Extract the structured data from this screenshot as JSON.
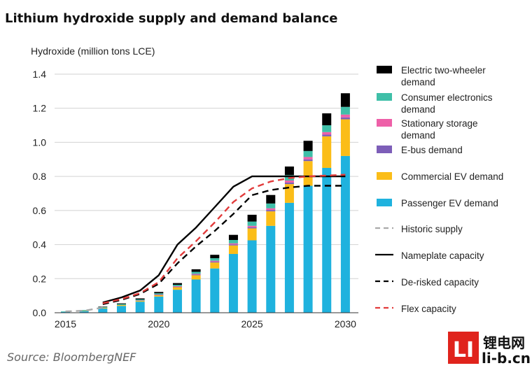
{
  "chart_data": {
    "type": "bar",
    "title": "Lithium hydroxide supply and demand balance",
    "ylabel": "Hydroxide (million tons LCE)",
    "xlabel": "",
    "ylim": [
      0,
      1.4
    ],
    "yticks": [
      "0.0",
      "0.2",
      "0.4",
      "0.6",
      "0.8",
      "1.0",
      "1.2",
      "1.4"
    ],
    "xticks": [
      "2015",
      "2020",
      "2025",
      "2030"
    ],
    "xtick_years": [
      2015,
      2020,
      2025,
      2030
    ],
    "stacked": true,
    "grid": "horizontal",
    "categories": [
      2015,
      2016,
      2017,
      2018,
      2019,
      2020,
      2021,
      2022,
      2023,
      2024,
      2025,
      2026,
      2027,
      2028,
      2029,
      2030
    ],
    "series": [
      {
        "name": "Passenger EV demand",
        "color": "#1fb2de",
        "values": [
          0.005,
          0.01,
          0.025,
          0.04,
          0.065,
          0.095,
          0.135,
          0.195,
          0.26,
          0.345,
          0.425,
          0.51,
          0.645,
          0.745,
          0.85,
          0.92
        ]
      },
      {
        "name": "Commercial EV demand",
        "color": "#fbbd18",
        "values": [
          0.0,
          0.002,
          0.004,
          0.005,
          0.006,
          0.008,
          0.015,
          0.025,
          0.035,
          0.05,
          0.07,
          0.085,
          0.11,
          0.145,
          0.185,
          0.215
        ]
      },
      {
        "name": "E-bus demand",
        "color": "#7d5eb8",
        "values": [
          0.0,
          0.0,
          0.0,
          0.0,
          0.0,
          0.002,
          0.003,
          0.004,
          0.005,
          0.006,
          0.007,
          0.008,
          0.009,
          0.01,
          0.01,
          0.011
        ]
      },
      {
        "name": "Stationary storage demand",
        "color": "#ee60a8",
        "values": [
          0.0,
          0.0,
          0.0,
          0.0,
          0.001,
          0.002,
          0.003,
          0.004,
          0.005,
          0.006,
          0.008,
          0.01,
          0.012,
          0.014,
          0.015,
          0.017
        ]
      },
      {
        "name": "Consumer electronics demand",
        "color": "#3fbfa8",
        "values": [
          0.003,
          0.004,
          0.005,
          0.006,
          0.006,
          0.007,
          0.008,
          0.012,
          0.015,
          0.02,
          0.025,
          0.028,
          0.032,
          0.035,
          0.04,
          0.045
        ]
      },
      {
        "name": "Electric two-wheeler demand",
        "color": "#000000",
        "values": [
          0.0,
          0.0,
          0.002,
          0.004,
          0.006,
          0.008,
          0.01,
          0.015,
          0.02,
          0.03,
          0.04,
          0.05,
          0.05,
          0.06,
          0.07,
          0.08
        ]
      }
    ],
    "lines": [
      {
        "name": "Historic supply",
        "color": "#aaaaaa",
        "dash": "9,6",
        "x": [
          2015,
          2016,
          2017
        ],
        "y": [
          0.008,
          0.012,
          0.03
        ]
      },
      {
        "name": "Nameplate capacity",
        "color": "#000000",
        "dash": "",
        "x": [
          2017,
          2018,
          2019,
          2020,
          2021,
          2022,
          2023,
          2024,
          2025,
          2026,
          2027,
          2028,
          2029,
          2030
        ],
        "y": [
          0.06,
          0.09,
          0.13,
          0.22,
          0.4,
          0.5,
          0.62,
          0.74,
          0.8,
          0.8,
          0.8,
          0.8,
          0.8,
          0.8
        ]
      },
      {
        "name": "De-risked capacity",
        "color": "#000000",
        "dash": "9,6",
        "x": [
          2017,
          2018,
          2019,
          2020,
          2021,
          2022,
          2023,
          2024,
          2025,
          2026,
          2027,
          2028,
          2029,
          2030
        ],
        "y": [
          0.05,
          0.075,
          0.11,
          0.17,
          0.29,
          0.39,
          0.48,
          0.58,
          0.69,
          0.72,
          0.735,
          0.745,
          0.745,
          0.745
        ]
      },
      {
        "name": "Flex capacity",
        "color": "#e23b3b",
        "dash": "9,6",
        "x": [
          2017,
          2018,
          2019,
          2020,
          2021,
          2022,
          2023,
          2024,
          2025,
          2026,
          2027,
          2028,
          2029,
          2030
        ],
        "y": [
          0.055,
          0.08,
          0.115,
          0.18,
          0.32,
          0.42,
          0.53,
          0.65,
          0.73,
          0.77,
          0.79,
          0.8,
          0.805,
          0.81
        ]
      }
    ],
    "legend": [
      {
        "label": [
          "Electric two-wheeler",
          "demand"
        ],
        "kind": "box",
        "color": "#000000"
      },
      {
        "label": [
          "Consumer electronics",
          "demand"
        ],
        "kind": "box",
        "color": "#3fbfa8"
      },
      {
        "label": [
          "Stationary storage",
          "demand"
        ],
        "kind": "box",
        "color": "#ee60a8"
      },
      {
        "label": [
          "E-bus demand"
        ],
        "kind": "box",
        "color": "#7d5eb8"
      },
      {
        "label": [
          "Commercial EV demand"
        ],
        "kind": "box",
        "color": "#fbbd18"
      },
      {
        "label": [
          "Passenger EV demand"
        ],
        "kind": "box",
        "color": "#1fb2de"
      },
      {
        "label": [
          "Historic supply"
        ],
        "kind": "line",
        "color": "#aaaaaa",
        "dash": "7,5"
      },
      {
        "label": [
          "Nameplate capacity"
        ],
        "kind": "line",
        "color": "#000000",
        "dash": ""
      },
      {
        "label": [
          "De-risked capacity"
        ],
        "kind": "line",
        "color": "#000000",
        "dash": "7,5"
      },
      {
        "label": [
          "Flex capacity"
        ],
        "kind": "line",
        "color": "#e23b3b",
        "dash": "7,5"
      }
    ],
    "legend_position": "right",
    "source": "Source: BloombergNEF"
  },
  "watermark": {
    "logo_mark": "LI",
    "logo_cn": "锂电网",
    "logo_url": "li-b.cn",
    "accent": "#e0231c"
  }
}
